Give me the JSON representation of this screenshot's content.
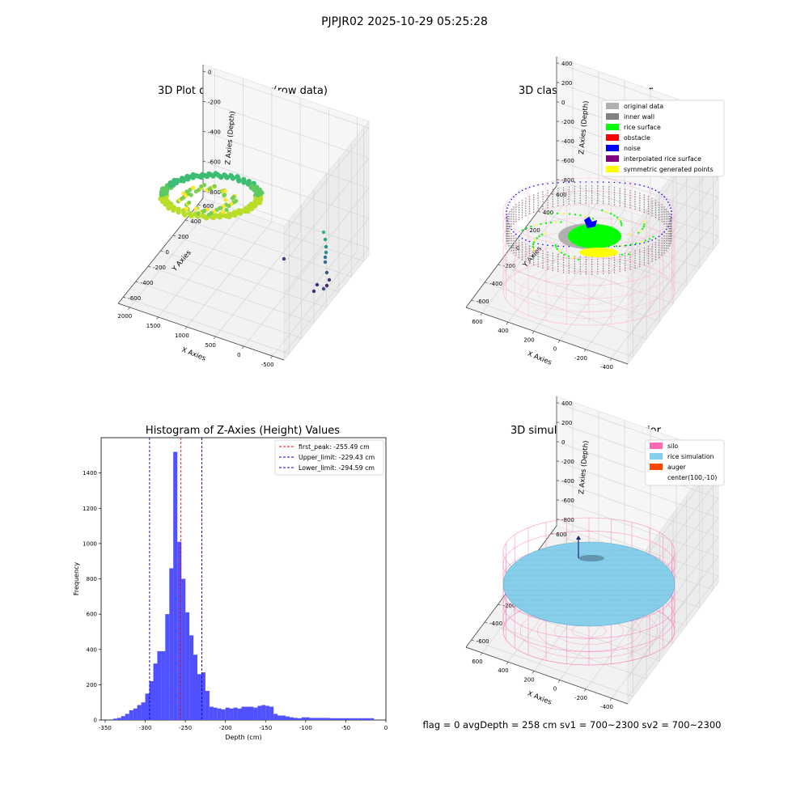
{
  "figure_title": "PJPJR02 2025-10-29 05:25:28",
  "status_line": "flag = 0     avgDepth = 258 cm  sv1 = 700~2300  sv2 = 700~2300",
  "colors": {
    "histogram_bar": "#5050ff",
    "peak_line": "#ff0000",
    "limit_line": "#0000cc",
    "pane": "#f2f2f2",
    "silo_wire": "#ff69b4",
    "rice_sim": "#87ceeb",
    "auger": "#ff4500"
  },
  "chart_data": [
    {
      "type": "scatter3d",
      "title": "3D Plot of Silo Interior(row data)",
      "xlabel": "X Axies",
      "ylabel": "Y Axies",
      "zlabel": "Z Axies (Depth)",
      "x_ticks": [
        "-500",
        "0",
        "500",
        "1000",
        "1500",
        "2000"
      ],
      "y_ticks": [
        "600",
        "400",
        "200",
        "0",
        "-200",
        "-400",
        "-600"
      ],
      "z_ticks": [
        "0",
        "-200",
        "-400",
        "-600",
        "-800"
      ],
      "xlim": [
        -650,
        2050
      ],
      "ylim": [
        -650,
        650
      ],
      "zlim": [
        -900,
        0
      ],
      "colormap": "viridis"
    },
    {
      "type": "scatter3d",
      "title": "3D classify of Silo Interior",
      "xlabel": "X Axies",
      "ylabel": "Y Axies",
      "zlabel": "Z Axies (Depth)",
      "x_ticks": [
        "-400",
        "-200",
        "0",
        "200",
        "400",
        "600"
      ],
      "y_ticks": [
        "600",
        "400",
        "200",
        "0",
        "-200",
        "-400",
        "-600"
      ],
      "z_ticks": [
        "400",
        "200",
        "0",
        "-200",
        "-400",
        "-600",
        "-800"
      ],
      "xlim": [
        -500,
        700
      ],
      "ylim": [
        -650,
        650
      ],
      "zlim": [
        -900,
        400
      ],
      "legend_position": "top-right",
      "legend": [
        {
          "label": "original data",
          "color": "#b0b0b0"
        },
        {
          "label": "inner wall",
          "color": "#808080"
        },
        {
          "label": "rice surface",
          "color": "#00ff00"
        },
        {
          "label": "obstacle",
          "color": "#ff0000"
        },
        {
          "label": "noise",
          "color": "#0000ff"
        },
        {
          "label": "interpolated rice surface",
          "color": "#800080"
        },
        {
          "label": "symmetric generated points",
          "color": "#ffff00"
        }
      ]
    },
    {
      "type": "bar",
      "title": "Histogram of Z-Axies (Height) Values",
      "xlabel": "Depth (cm)",
      "ylabel": "Frequency",
      "x_ticks": [
        -350,
        -300,
        -250,
        -200,
        -150,
        -100,
        -50,
        0
      ],
      "y_ticks": [
        0,
        200,
        400,
        600,
        800,
        1000,
        1200,
        1400
      ],
      "xlim": [
        -355,
        0
      ],
      "ylim": [
        0,
        1600
      ],
      "bin_width": 5,
      "bins_start": [
        -345,
        -340,
        -335,
        -330,
        -325,
        -320,
        -315,
        -310,
        -305,
        -300,
        -295,
        -290,
        -285,
        -280,
        -275,
        -270,
        -265,
        -260,
        -255,
        -250,
        -245,
        -240,
        -235,
        -230,
        -225,
        -220,
        -215,
        -210,
        -205,
        -200,
        -195,
        -190,
        -185,
        -180,
        -175,
        -170,
        -165,
        -160,
        -155,
        -150,
        -145,
        -140,
        -135,
        -130,
        -125,
        -120,
        -115,
        -110,
        -105,
        -100,
        -95,
        -90,
        -85,
        -80,
        -75,
        -70,
        -65,
        -60,
        -55,
        -50,
        -45,
        -40,
        -35,
        -30,
        -25,
        -20
      ],
      "values": [
        3,
        8,
        12,
        22,
        35,
        55,
        65,
        85,
        100,
        150,
        220,
        320,
        390,
        390,
        600,
        860,
        1520,
        1010,
        800,
        610,
        480,
        370,
        260,
        270,
        165,
        75,
        70,
        65,
        60,
        70,
        65,
        70,
        65,
        75,
        75,
        75,
        70,
        80,
        85,
        80,
        75,
        35,
        25,
        25,
        20,
        15,
        12,
        10,
        15,
        15,
        12,
        12,
        12,
        12,
        12,
        10,
        10,
        10,
        10,
        10,
        10,
        10,
        10,
        10,
        10,
        10
      ],
      "vlines": [
        {
          "label": "first_peak: -255.49 cm",
          "x": -255.49,
          "color": "#ff0000"
        },
        {
          "label": "Upper_limit: -229.43 cm",
          "x": -229.43,
          "color": "#0000cc"
        },
        {
          "label": "Lower_limit: -294.59 cm",
          "x": -294.59,
          "color": "#0000cc"
        }
      ],
      "legend_position": "top-right"
    },
    {
      "type": "surface3d",
      "title": "3D simulation of Silo Interior",
      "xlabel": "X Axies",
      "ylabel": "Y Axies",
      "zlabel": "Z Axies (Depth)",
      "x_ticks": [
        "-400",
        "-200",
        "0",
        "200",
        "400",
        "600"
      ],
      "y_ticks": [
        "600",
        "400",
        "200",
        "0",
        "-200",
        "-400",
        "-600"
      ],
      "z_ticks": [
        "400",
        "200",
        "0",
        "-200",
        "-400",
        "-600",
        "-800"
      ],
      "xlim": [
        -500,
        700
      ],
      "ylim": [
        -650,
        650
      ],
      "zlim": [
        -900,
        400
      ],
      "legend_position": "top-right",
      "legend": [
        {
          "label": "silo",
          "color": "#ff69b4"
        },
        {
          "label": "rice simulation",
          "color": "#87ceeb"
        },
        {
          "label": "auger",
          "color": "#ff4500"
        },
        {
          "label": "center(100,-10)",
          "color": ""
        }
      ]
    }
  ]
}
